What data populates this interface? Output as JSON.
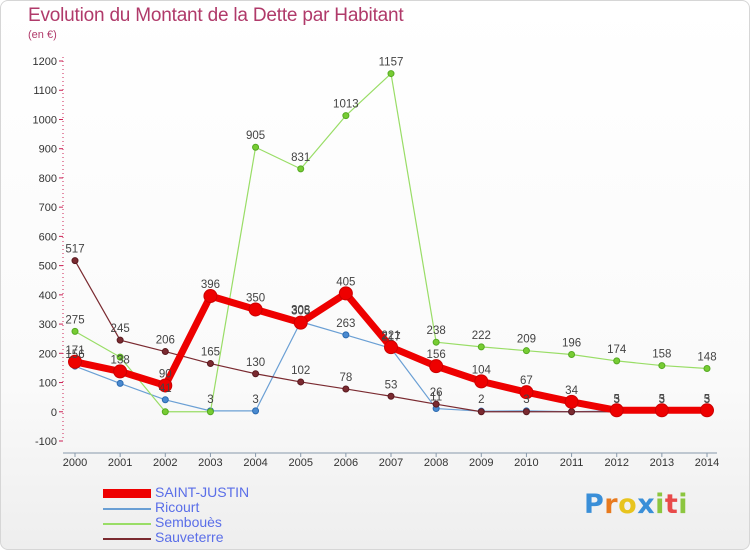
{
  "title": "Evolution du Montant de la Dette par Habitant",
  "subtitle": "(en €)",
  "logo": {
    "letters": [
      "P",
      "r",
      "o",
      "x",
      "i",
      "t",
      "i"
    ],
    "colors": [
      "#3a8fd8",
      "#e87a1e",
      "#e8c41e",
      "#3a8fd8",
      "#8cc63f",
      "#e84a4a",
      "#8cc63f"
    ]
  },
  "chart_data": {
    "type": "line",
    "title": "Evolution du Montant de la Dette par Habitant",
    "subtitle": "(en €)",
    "xlabel": "",
    "ylabel": "",
    "x": [
      "2000",
      "2001",
      "2002",
      "2003",
      "2004",
      "2005",
      "2006",
      "2007",
      "2008",
      "2009",
      "2010",
      "2011",
      "2012",
      "2013",
      "2014"
    ],
    "ylim": [
      -100,
      1200
    ],
    "yticks": [
      -100,
      0,
      100,
      200,
      300,
      400,
      500,
      600,
      700,
      800,
      900,
      1000,
      1100,
      1200
    ],
    "grid": false,
    "legend_position": "bottom-left",
    "series": [
      {
        "name": "SAINT-JUSTIN",
        "color": "#ee0000",
        "values": [
          171,
          138,
          90,
          396,
          350,
          305,
          405,
          221,
          156,
          104,
          67,
          34,
          5,
          5,
          5
        ],
        "labels": [
          "171",
          "138",
          "90",
          "396",
          "350",
          "305",
          "405",
          "221",
          "156",
          "104",
          "67",
          "34",
          "5",
          "5",
          "5"
        ]
      },
      {
        "name": "Ricourt",
        "color": "#6a9fd4",
        "values": [
          156,
          97,
          41,
          3,
          3,
          308,
          263,
          217,
          11,
          2,
          3,
          0,
          3,
          3,
          3
        ],
        "labels": [
          "156",
          "",
          "41",
          "3",
          "3",
          "308",
          "263",
          "217",
          "11",
          "2",
          "3",
          "",
          "3",
          "3",
          "3"
        ]
      },
      {
        "name": "Sembouès",
        "color": "#99dd66",
        "values": [
          275,
          187,
          0,
          0,
          905,
          831,
          1013,
          1157,
          238,
          222,
          209,
          196,
          174,
          158,
          148
        ],
        "labels": [
          "275",
          "",
          "",
          "",
          "905",
          "831",
          "1013",
          "1157",
          "238",
          "222",
          "209",
          "196",
          "174",
          "158",
          "148"
        ]
      },
      {
        "name": "Sauveterre",
        "color": "#7a2a30",
        "values": [
          517,
          245,
          206,
          165,
          130,
          102,
          78,
          53,
          26,
          0,
          0,
          0,
          0,
          0,
          0
        ],
        "labels": [
          "517",
          "245",
          "206",
          "165",
          "130",
          "102",
          "78",
          "53",
          "26",
          "",
          "",
          "",
          "",
          "",
          ""
        ]
      }
    ]
  }
}
